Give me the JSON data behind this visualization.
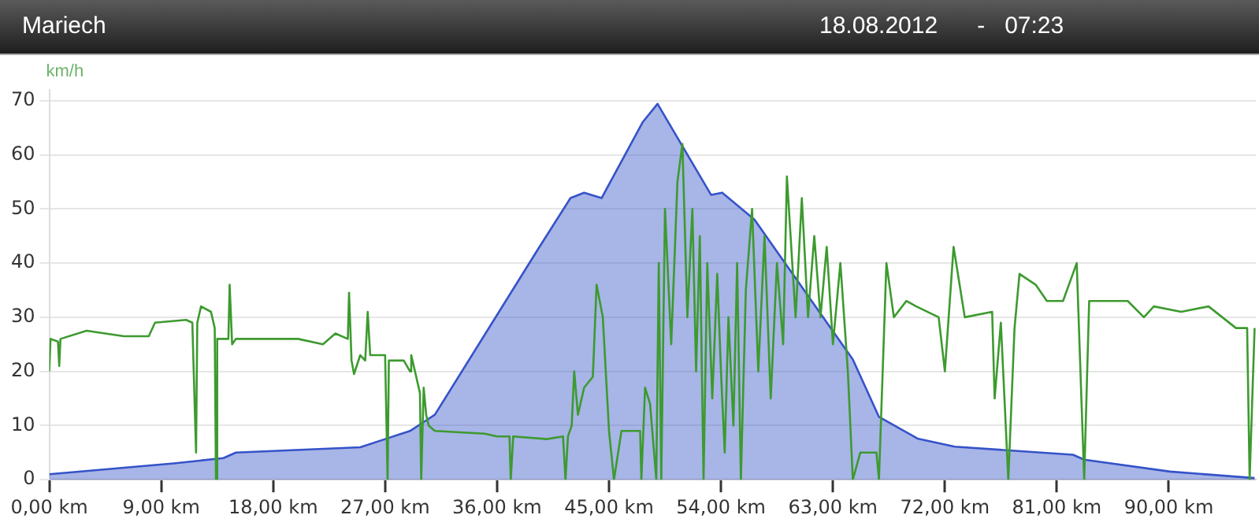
{
  "chart_data": {
    "type": "line",
    "title": "Mariech",
    "subtitle": "18.08.2012      -   07:23",
    "ylabel": "km/h",
    "xlim": [
      0,
      97
    ],
    "ylim": [
      0,
      72
    ],
    "xticks": [
      {
        "value": 0,
        "label": "0,00 km"
      },
      {
        "value": 9,
        "label": "9,00 km"
      },
      {
        "value": 18,
        "label": "18,00 km"
      },
      {
        "value": 27,
        "label": "27,00 km"
      },
      {
        "value": 36,
        "label": "36,00 km"
      },
      {
        "value": 45,
        "label": "45,00 km"
      },
      {
        "value": 54,
        "label": "54,00 km"
      },
      {
        "value": 63,
        "label": "63,00 km"
      },
      {
        "value": 72,
        "label": "72,00 km"
      },
      {
        "value": 81,
        "label": "81,00 km"
      },
      {
        "value": 90,
        "label": "90,00 km"
      }
    ],
    "yticks": [
      0,
      10,
      20,
      30,
      40,
      50,
      60,
      70
    ],
    "grid": "y",
    "legend": false,
    "marker": "none",
    "line_style": "solid",
    "series": [
      {
        "type": "area",
        "color": "#3553c8",
        "x": [
          0,
          10,
          14,
          15,
          25,
          27,
          29,
          30,
          31,
          39.3,
          41.9,
          43,
          44.4,
          47.7,
          48.9,
          53.2,
          54.1,
          56.7,
          59,
          64.6,
          66.7,
          69.8,
          72.8,
          82.3,
          83.2,
          90.1,
          96.9
        ],
        "values": [
          1,
          3,
          4,
          5,
          6,
          7.5,
          9,
          10.5,
          12,
          42.6,
          52,
          53,
          52,
          66,
          69.4,
          52.6,
          53,
          48,
          40.5,
          22.2,
          11.6,
          7.6,
          6.1,
          4.6,
          3.7,
          1.5,
          0.3
        ]
      },
      {
        "color": "#3d9a2f",
        "x": [
          0,
          0.1,
          0.7,
          0.8,
          0.9,
          3,
          6,
          8,
          8.5,
          11,
          11.5,
          11.8,
          11.9,
          12.2,
          13,
          13.3,
          13.4,
          13.5,
          14.4,
          14.5,
          14.7,
          15,
          20,
          22,
          23,
          24,
          24.1,
          24.3,
          24.5,
          25,
          25.4,
          25.6,
          25.8,
          27,
          27.2,
          27.3,
          28.5,
          29,
          29.1,
          29.5,
          29.8,
          29.9,
          30.1,
          30.3,
          30.5,
          31,
          35,
          36,
          37,
          37.1,
          37.3,
          40,
          41.3,
          41.5,
          41.7,
          42,
          42.2,
          42.5,
          43,
          43.7,
          44,
          44.5,
          45,
          45.4,
          46,
          46.2,
          47.5,
          47.6,
          47.9,
          48.3,
          48.8,
          49,
          49.2,
          49.5,
          50,
          50.5,
          50.9,
          51.3,
          51.7,
          52,
          52.3,
          52.6,
          52.9,
          53.3,
          53.7,
          54,
          54.3,
          54.6,
          55,
          55.3,
          55.6,
          56,
          56.5,
          57,
          57.5,
          58,
          58.5,
          59,
          59.3,
          60,
          60.5,
          61,
          61.5,
          62,
          62.5,
          63,
          63.6,
          64.2,
          64.6,
          65.2,
          66.5,
          66.7,
          67.3,
          67.9,
          68.9,
          69.7,
          71.5,
          72,
          72.7,
          73.6,
          75.8,
          76,
          76.5,
          77.1,
          77.6,
          78,
          79.3,
          80.2,
          81.5,
          82.6,
          83.2,
          83.6,
          86.7,
          88,
          88.8,
          91,
          93.2,
          95.4,
          96.3,
          96.5,
          96.9
        ],
        "values": [
          20,
          26,
          25.5,
          21,
          26,
          27.5,
          26.5,
          26.5,
          29,
          29.5,
          29,
          5,
          29,
          32,
          31,
          28,
          0,
          26,
          26,
          36,
          25,
          26,
          26,
          25,
          27,
          26,
          34.5,
          22,
          19.5,
          23,
          22,
          31,
          23,
          23,
          0,
          22,
          22,
          20,
          23,
          19,
          16,
          0,
          17,
          12,
          10,
          9,
          8.5,
          8,
          8,
          0,
          8,
          7.5,
          8,
          0,
          8,
          10,
          20,
          12,
          17,
          19,
          36,
          30,
          9,
          0,
          9,
          9,
          9,
          0,
          17,
          14,
          0,
          40,
          0,
          50,
          25,
          55,
          62,
          30,
          50,
          20,
          45,
          0,
          40,
          15,
          38,
          20,
          5,
          30,
          10,
          40,
          0,
          35,
          50,
          20,
          45,
          15,
          40,
          25,
          56,
          30,
          52,
          30,
          45,
          30,
          43,
          25,
          40,
          20,
          0,
          5,
          5,
          0,
          40,
          30,
          33,
          32,
          30,
          20,
          43,
          30,
          31,
          15,
          29,
          0,
          28,
          38,
          36,
          33,
          33,
          40,
          0,
          33,
          33,
          30,
          32,
          31,
          32,
          28,
          28,
          0,
          28
        ]
      }
    ]
  }
}
